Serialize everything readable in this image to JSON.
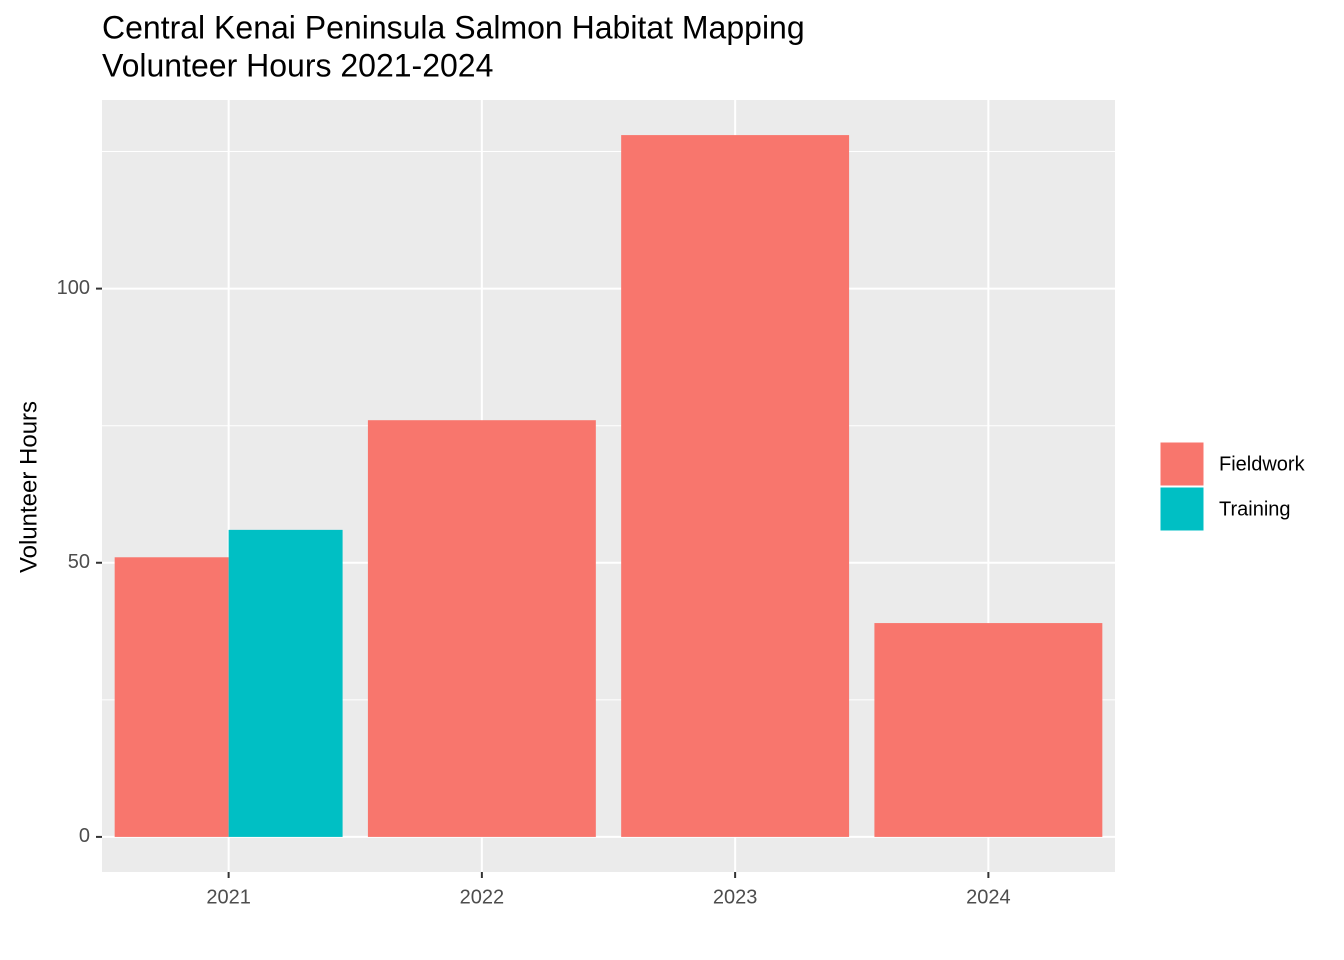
{
  "chart_data": {
    "type": "bar",
    "title": [
      "Central Kenai Peninsula Salmon Habitat Mapping",
      "Volunteer Hours 2021-2024"
    ],
    "y_label": "Volunteer Hours",
    "categories": [
      "2021",
      "2022",
      "2023",
      "2024"
    ],
    "series": [
      {
        "name": "Fieldwork",
        "color": "#f8766d",
        "values": [
          51,
          76,
          128,
          39
        ]
      },
      {
        "name": "Training",
        "color": "#00bfc4",
        "values": [
          56,
          null,
          null,
          null
        ]
      }
    ],
    "ylim": [
      -6.4,
      134.4
    ],
    "yticks": [
      0,
      50,
      100
    ],
    "grid": true,
    "minor_grid": true,
    "legend_position": "right"
  }
}
